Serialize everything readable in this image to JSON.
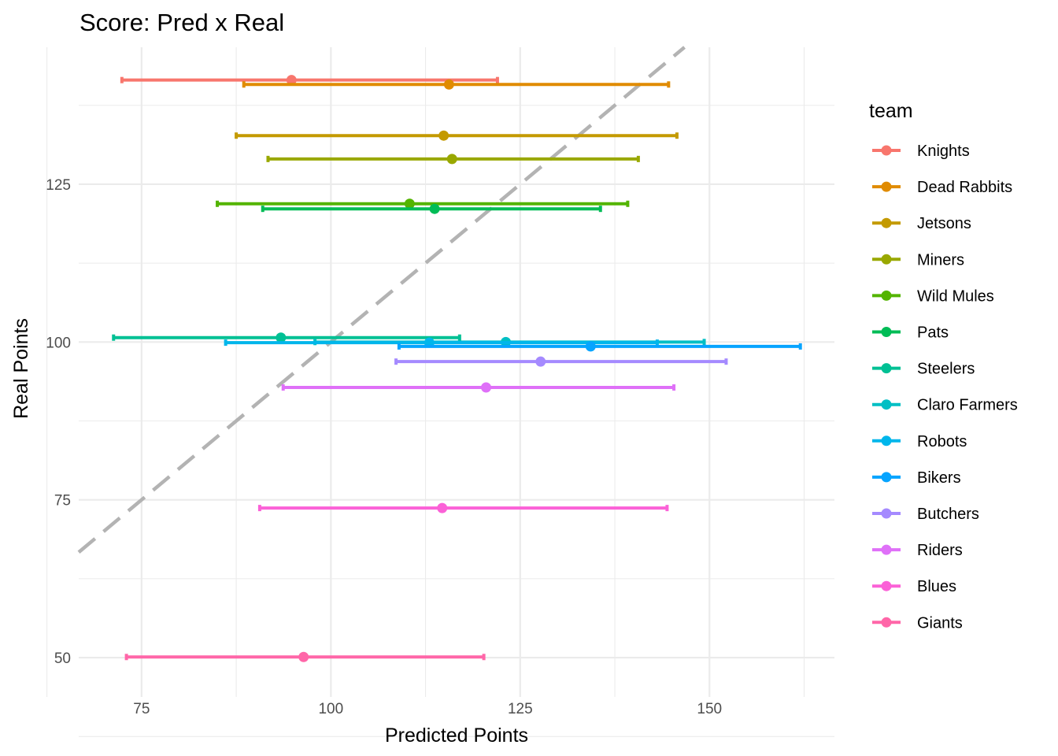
{
  "chart_data": {
    "type": "scatter",
    "title": "Score: Pred x Real",
    "xlabel": "Predicted Points",
    "ylabel": "Real Points",
    "xlim": [
      66.7,
      166.5
    ],
    "ylim": [
      41.9,
      146.7
    ],
    "xticks": [
      75,
      100,
      125,
      150
    ],
    "yticks": [
      50,
      75,
      100,
      125
    ],
    "grid": true,
    "reference_line": {
      "type": "identity",
      "style": "dashed",
      "color": "#b3b3b3"
    },
    "legend": {
      "title": "team",
      "placement": "right"
    },
    "series": [
      {
        "name": "Knights",
        "color": "#F8766D",
        "x": 94.8,
        "y": 141.5,
        "xmin": 72.4,
        "xmax": 122.0
      },
      {
        "name": "Dead Rabbits",
        "color": "#E08B00",
        "x": 115.6,
        "y": 140.8,
        "xmin": 88.5,
        "xmax": 144.6
      },
      {
        "name": "Jetsons",
        "color": "#C49A00",
        "x": 114.9,
        "y": 132.7,
        "xmin": 87.5,
        "xmax": 145.7
      },
      {
        "name": "Miners",
        "color": "#99A800",
        "x": 116.0,
        "y": 129.0,
        "xmin": 91.7,
        "xmax": 140.6
      },
      {
        "name": "Wild Mules",
        "color": "#53B400",
        "x": 110.4,
        "y": 121.9,
        "xmin": 85.0,
        "xmax": 139.2
      },
      {
        "name": "Pats",
        "color": "#00BC56",
        "x": 113.7,
        "y": 121.1,
        "xmin": 91.0,
        "xmax": 135.6
      },
      {
        "name": "Steelers",
        "color": "#00C094",
        "x": 93.4,
        "y": 100.7,
        "xmin": 71.3,
        "xmax": 117.0
      },
      {
        "name": "Claro Farmers",
        "color": "#00BFC4",
        "x": 123.1,
        "y": 100.0,
        "xmin": 97.9,
        "xmax": 149.3
      },
      {
        "name": "Robots",
        "color": "#00B6EB",
        "x": 113.0,
        "y": 99.9,
        "xmin": 86.1,
        "xmax": 143.1
      },
      {
        "name": "Bikers",
        "color": "#06A4FF",
        "x": 134.3,
        "y": 99.3,
        "xmin": 109.0,
        "xmax": 162.0
      },
      {
        "name": "Butchers",
        "color": "#A58AFF",
        "x": 127.7,
        "y": 96.9,
        "xmin": 108.6,
        "xmax": 152.2
      },
      {
        "name": "Riders",
        "color": "#DF70F8",
        "x": 120.5,
        "y": 92.8,
        "xmin": 93.7,
        "xmax": 145.3
      },
      {
        "name": "Blues",
        "color": "#FB61D7",
        "x": 114.7,
        "y": 73.7,
        "xmin": 90.6,
        "xmax": 144.4
      },
      {
        "name": "Giants",
        "color": "#FF66A8",
        "x": 96.4,
        "y": 50.1,
        "xmin": 73.0,
        "xmax": 120.2
      }
    ]
  }
}
